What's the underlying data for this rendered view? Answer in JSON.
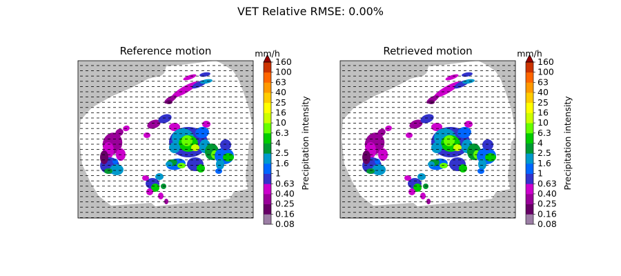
{
  "figure": {
    "suptitle": "VET Relative RMSE: 0.00%"
  },
  "chart_data": [
    {
      "type": "heatmap",
      "title": "Reference motion",
      "field": "precipitation-intensity",
      "motion_field": "uniform-eastward",
      "background_color": "#c0c0c0",
      "domain_color": "#ffffff",
      "colorbar": {
        "unit_label": "mm/h",
        "axis_label": "Precipitation intensity",
        "levels": [
          "0.08",
          "0.16",
          "0.25",
          "0.40",
          "0.63",
          "1",
          "1.6",
          "2.5",
          "4",
          "6.3",
          "10",
          "16",
          "25",
          "40",
          "63",
          "100",
          "160"
        ],
        "colors": [
          "#9c7ea5",
          "#660066",
          "#990099",
          "#cc00cc",
          "#3333cc",
          "#0066ff",
          "#0099cc",
          "#009933",
          "#00cc00",
          "#66ff00",
          "#ccff00",
          "#ffff00",
          "#ffcc00",
          "#ff9900",
          "#ff6600",
          "#cc3300"
        ],
        "extend": "max",
        "extend_color": "#990000"
      }
    },
    {
      "type": "heatmap",
      "title": "Retrieved motion",
      "field": "precipitation-intensity",
      "motion_field": "uniform-eastward",
      "background_color": "#c0c0c0",
      "domain_color": "#ffffff",
      "colorbar": {
        "unit_label": "mm/h",
        "axis_label": "Precipitation intensity",
        "levels": [
          "0.08",
          "0.16",
          "0.25",
          "0.40",
          "0.63",
          "1",
          "1.6",
          "2.5",
          "4",
          "6.3",
          "10",
          "16",
          "25",
          "40",
          "63",
          "100",
          "160"
        ],
        "colors": [
          "#9c7ea5",
          "#660066",
          "#990099",
          "#cc00cc",
          "#3333cc",
          "#0066ff",
          "#0099cc",
          "#009933",
          "#00cc00",
          "#66ff00",
          "#ccff00",
          "#ffff00",
          "#ffcc00",
          "#ff9900",
          "#ff6600",
          "#cc3300"
        ],
        "extend": "max",
        "extend_color": "#990000"
      }
    }
  ]
}
